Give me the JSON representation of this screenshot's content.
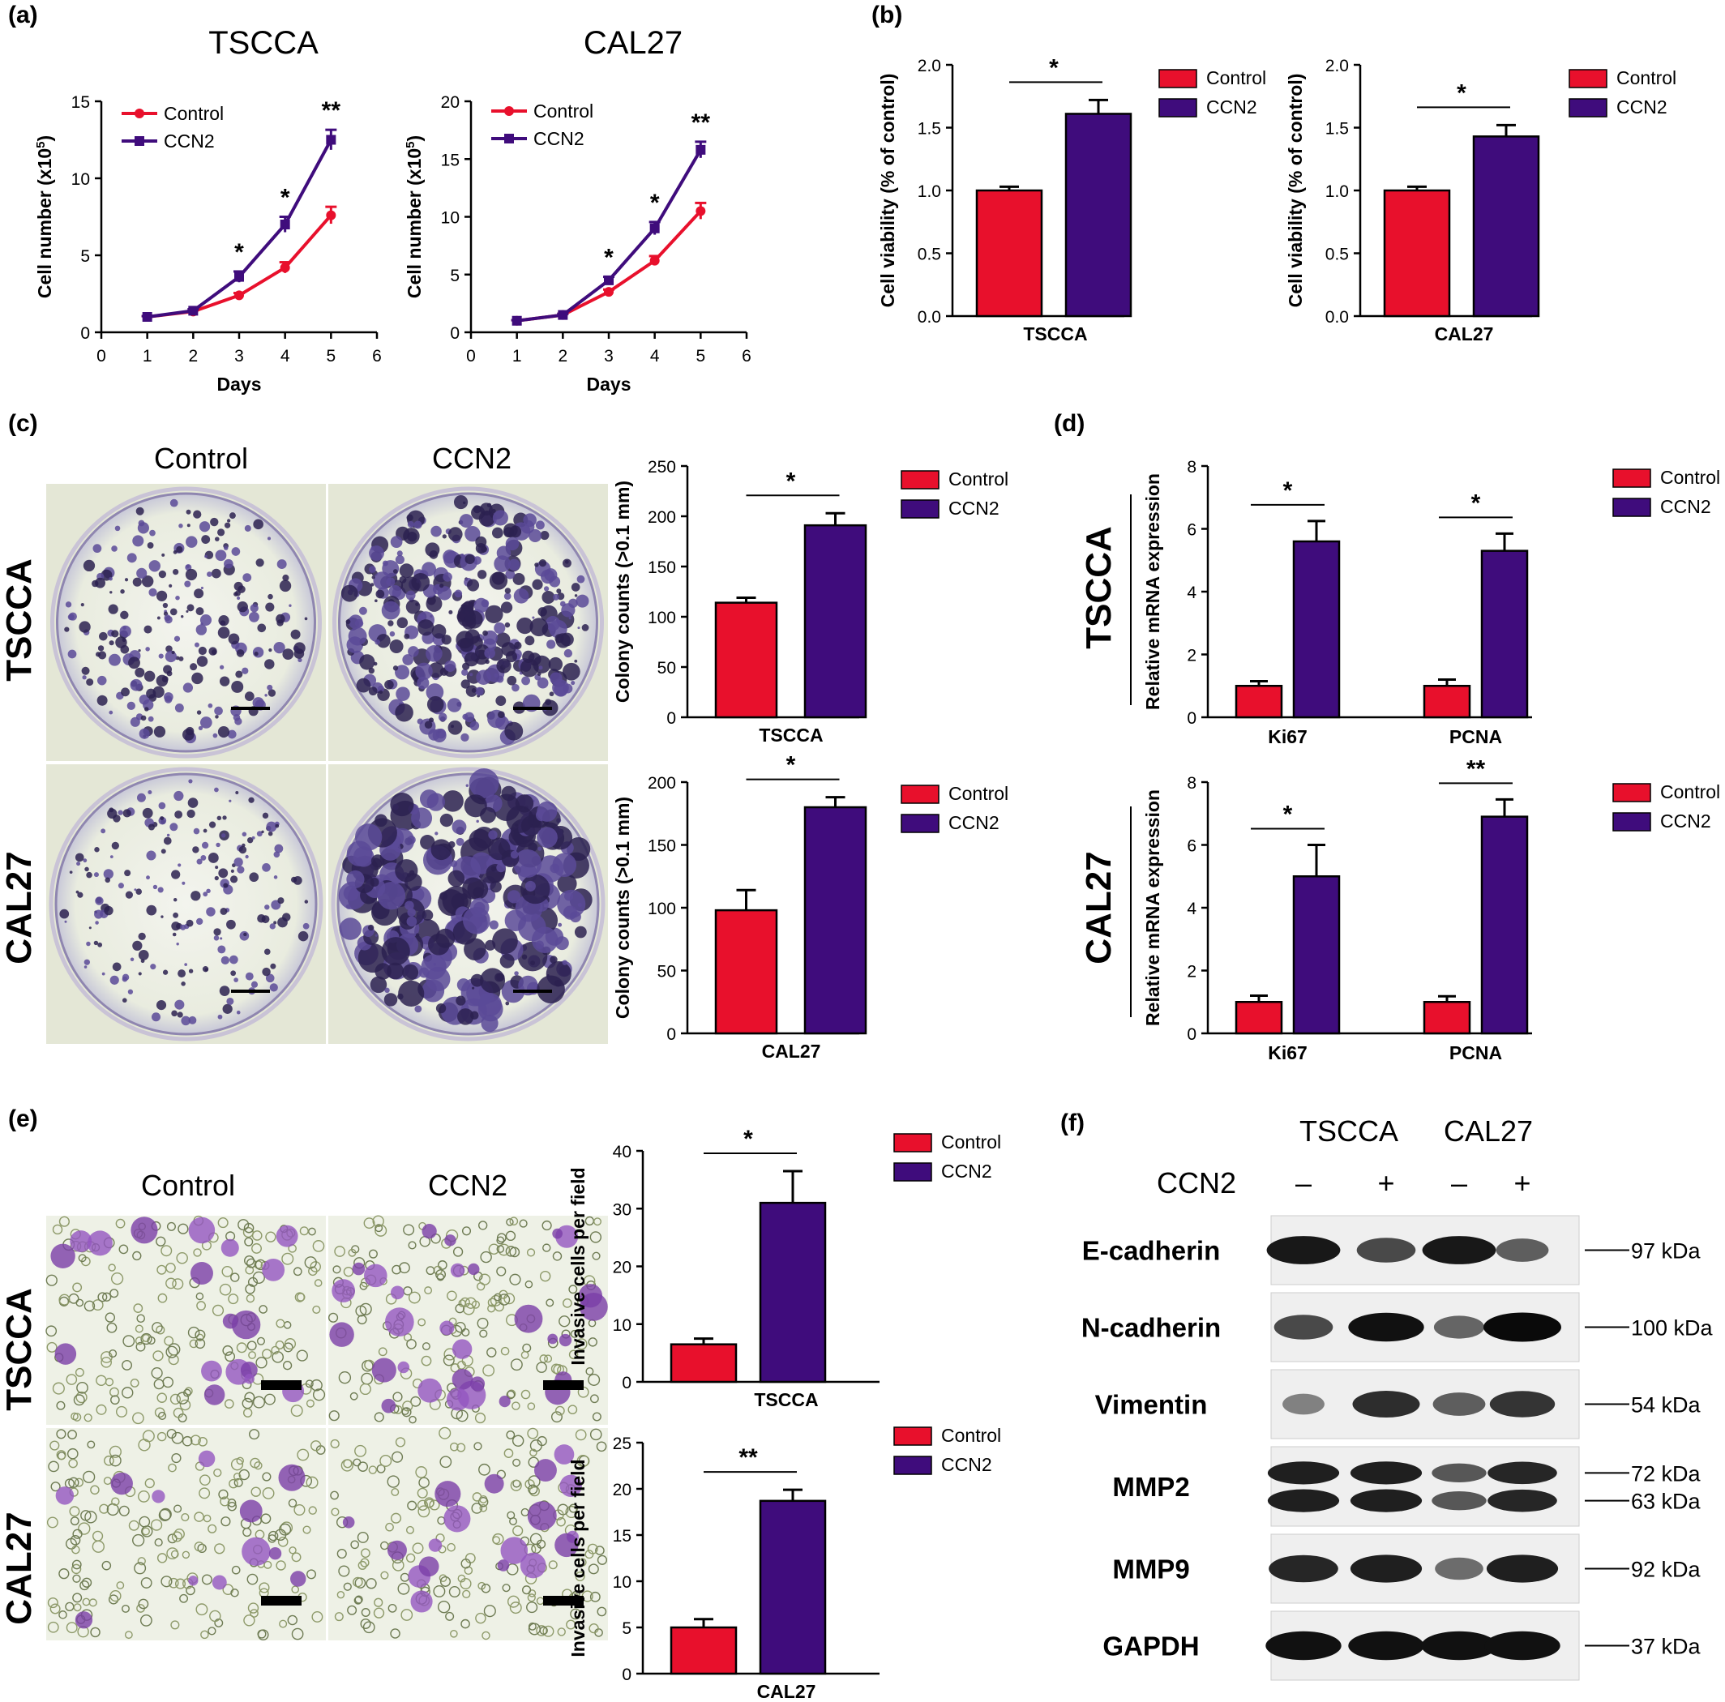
{
  "colors": {
    "control": "#e8102c",
    "ccn2": "#3f0c7c",
    "plate": "#f1f3e9",
    "dish": "#e7ecdd"
  },
  "panel_labels": [
    "(a)",
    "(b)",
    "(c)",
    "(d)",
    "(e)",
    "(f)"
  ],
  "legend": [
    "Control",
    "CCN2"
  ],
  "image_headers": {
    "c": [
      "Control",
      "CCN2"
    ],
    "e": [
      "Control",
      "CCN2"
    ]
  },
  "image_rows": {
    "c": [
      "TSCCA",
      "CAL27"
    ],
    "e": [
      "TSCCA",
      "CAL27"
    ],
    "d": [
      "TSCCA",
      "CAL27"
    ]
  },
  "chart_data": [
    {
      "id": "a1",
      "type": "line",
      "title": "TSCCA",
      "xlabel": "Days",
      "ylabel": "Cell number (x10",
      "ylabel_sup": "5",
      "ylabel_end": ")",
      "xlim": [
        0,
        6
      ],
      "ylim": [
        0,
        15
      ],
      "xticks": [
        0,
        1,
        2,
        3,
        4,
        5,
        6
      ],
      "yticks": [
        0,
        5,
        10,
        15
      ],
      "x": [
        1,
        2,
        3,
        4,
        5
      ],
      "series": [
        {
          "name": "Control",
          "values": [
            1.0,
            1.35,
            2.4,
            4.2,
            7.6
          ],
          "err": [
            0.05,
            0.08,
            0.15,
            0.35,
            0.55
          ]
        },
        {
          "name": "CCN2",
          "values": [
            1.0,
            1.4,
            3.6,
            7.0,
            12.5
          ],
          "err": [
            0.05,
            0.1,
            0.35,
            0.5,
            0.65
          ]
        }
      ],
      "annotations": [
        {
          "x": 3,
          "text": "*"
        },
        {
          "x": 4,
          "text": "*"
        },
        {
          "x": 5,
          "text": "**"
        }
      ],
      "legend_position": "top-left"
    },
    {
      "id": "a2",
      "type": "line",
      "title": "CAL27",
      "xlabel": "Days",
      "ylabel": "Cell number (x10",
      "ylabel_sup": "5",
      "ylabel_end": ")",
      "xlim": [
        0,
        6
      ],
      "ylim": [
        0,
        20
      ],
      "xticks": [
        0,
        1,
        2,
        3,
        4,
        5,
        6
      ],
      "yticks": [
        0,
        5,
        10,
        15,
        20
      ],
      "x": [
        1,
        2,
        3,
        4,
        5
      ],
      "series": [
        {
          "name": "Control",
          "values": [
            1.0,
            1.5,
            3.5,
            6.2,
            10.5
          ],
          "err": [
            0.05,
            0.1,
            0.2,
            0.4,
            0.7
          ]
        },
        {
          "name": "CCN2",
          "values": [
            1.0,
            1.5,
            4.5,
            9.0,
            15.8
          ],
          "err": [
            0.05,
            0.1,
            0.3,
            0.55,
            0.7
          ]
        }
      ],
      "annotations": [
        {
          "x": 3,
          "text": "*"
        },
        {
          "x": 4,
          "text": "*"
        },
        {
          "x": 5,
          "text": "**"
        }
      ],
      "legend_position": "top-left"
    },
    {
      "id": "b1",
      "type": "bar",
      "categories": [
        "Control",
        "CCN2"
      ],
      "group_label": "TSCCA",
      "values": [
        1.0,
        1.61
      ],
      "err": [
        0.03,
        0.11
      ],
      "ylabel": "Cell viability (% of control)",
      "ylim": [
        0,
        2.0
      ],
      "yticks": [
        "0.0",
        "0.5",
        "1.0",
        "1.5",
        "2.0"
      ],
      "ytick_values": [
        0,
        0.5,
        1.0,
        1.5,
        2.0
      ],
      "comparisons": [
        {
          "pair": [
            0,
            1
          ],
          "text": "*"
        }
      ],
      "legend_position": "right"
    },
    {
      "id": "b2",
      "type": "bar",
      "categories": [
        "Control",
        "CCN2"
      ],
      "group_label": "CAL27",
      "values": [
        1.0,
        1.43
      ],
      "err": [
        0.03,
        0.09
      ],
      "ylabel": "Cell viability (% of control)",
      "ylim": [
        0,
        2.0
      ],
      "yticks": [
        "0.0",
        "0.5",
        "1.0",
        "1.5",
        "2.0"
      ],
      "ytick_values": [
        0,
        0.5,
        1.0,
        1.5,
        2.0
      ],
      "comparisons": [
        {
          "pair": [
            0,
            1
          ],
          "text": "*"
        }
      ],
      "legend_position": "right"
    },
    {
      "id": "c1",
      "type": "bar",
      "categories": [
        "Control",
        "CCN2"
      ],
      "group_label": "TSCCA",
      "values": [
        114,
        191
      ],
      "err": [
        5,
        12
      ],
      "ylabel": "Colony counts (>0.1 mm)",
      "ylim": [
        0,
        250
      ],
      "yticks": [
        "0",
        "50",
        "100",
        "150",
        "200",
        "250"
      ],
      "ytick_values": [
        0,
        50,
        100,
        150,
        200,
        250
      ],
      "comparisons": [
        {
          "pair": [
            0,
            1
          ],
          "text": "*"
        }
      ],
      "legend_position": "right"
    },
    {
      "id": "c2",
      "type": "bar",
      "categories": [
        "Control",
        "CCN2"
      ],
      "group_label": "CAL27",
      "values": [
        98,
        180
      ],
      "err": [
        16,
        8
      ],
      "ylabel": "Colony counts (>0.1 mm)",
      "ylim": [
        0,
        200
      ],
      "yticks": [
        "0",
        "50",
        "100",
        "150",
        "200"
      ],
      "ytick_values": [
        0,
        50,
        100,
        150,
        200
      ],
      "comparisons": [
        {
          "pair": [
            0,
            1
          ],
          "text": "*"
        }
      ],
      "legend_position": "right"
    },
    {
      "id": "d1",
      "type": "bar",
      "categories": [
        "Ki67",
        "PCNA"
      ],
      "series": [
        {
          "name": "Control",
          "values": [
            1.0,
            1.0
          ],
          "err": [
            0.15,
            0.2
          ]
        },
        {
          "name": "CCN2",
          "values": [
            5.6,
            5.3
          ],
          "err": [
            0.65,
            0.55
          ]
        }
      ],
      "ylabel": "Relative mRNA expression",
      "ylim": [
        0,
        8
      ],
      "yticks": [
        "0",
        "2",
        "4",
        "6",
        "8"
      ],
      "ytick_values": [
        0,
        2,
        4,
        6,
        8
      ],
      "comparisons": [
        {
          "category": 0,
          "text": "*"
        },
        {
          "category": 1,
          "text": "*"
        }
      ],
      "legend_position": "right"
    },
    {
      "id": "d2",
      "type": "bar",
      "categories": [
        "Ki67",
        "PCNA"
      ],
      "series": [
        {
          "name": "Control",
          "values": [
            1.0,
            1.0
          ],
          "err": [
            0.2,
            0.18
          ]
        },
        {
          "name": "CCN2",
          "values": [
            5.0,
            6.9
          ],
          "err": [
            1.0,
            0.55
          ]
        }
      ],
      "ylabel": "Relative mRNA expression",
      "ylim": [
        0,
        8
      ],
      "yticks": [
        "0",
        "2",
        "4",
        "6",
        "8"
      ],
      "ytick_values": [
        0,
        2,
        4,
        6,
        8
      ],
      "comparisons": [
        {
          "category": 0,
          "text": "*"
        },
        {
          "category": 1,
          "text": "**"
        }
      ],
      "legend_position": "right"
    },
    {
      "id": "e1",
      "type": "bar",
      "categories": [
        "Control",
        "CCN2"
      ],
      "group_label": "TSCCA",
      "values": [
        6.5,
        31
      ],
      "err": [
        1.0,
        5.5
      ],
      "ylabel": "Invasive cells per field",
      "ylim": [
        0,
        40
      ],
      "yticks": [
        "0",
        "10",
        "20",
        "30",
        "40"
      ],
      "ytick_values": [
        0,
        10,
        20,
        30,
        40
      ],
      "comparisons": [
        {
          "pair": [
            0,
            1
          ],
          "text": "*"
        }
      ],
      "legend_position": "right"
    },
    {
      "id": "e2",
      "type": "bar",
      "categories": [
        "Control",
        "CCN2"
      ],
      "group_label": "CAL27",
      "values": [
        5.0,
        18.7
      ],
      "err": [
        0.9,
        1.2
      ],
      "ylabel": "Invasive cells per field",
      "ylim": [
        0,
        25
      ],
      "yticks": [
        "0",
        "5",
        "10",
        "15",
        "20",
        "25"
      ],
      "ytick_values": [
        0,
        5,
        10,
        15,
        20,
        25
      ],
      "comparisons": [
        {
          "pair": [
            0,
            1
          ],
          "text": "**"
        }
      ],
      "legend_position": "right"
    }
  ],
  "western": {
    "cell_lines": [
      "TSCCA",
      "CAL27"
    ],
    "treatment_label": "CCN2",
    "lane_signs": [
      "–",
      "+",
      "–",
      "+"
    ],
    "bands": [
      {
        "name": "E-cadherin",
        "markers": [
          "97 kDa"
        ],
        "intensity": [
          0.9,
          0.55,
          0.9,
          0.4
        ],
        "rows": 1
      },
      {
        "name": "N-cadherin",
        "markers": [
          "100 kDa"
        ],
        "intensity": [
          0.55,
          0.95,
          0.35,
          1.0
        ],
        "rows": 1
      },
      {
        "name": "Vimentin",
        "markers": [
          "54 kDa"
        ],
        "intensity": [
          0.15,
          0.75,
          0.4,
          0.7
        ],
        "rows": 1
      },
      {
        "name": "MMP2",
        "markers": [
          "72 kDa",
          "63 kDa"
        ],
        "intensity": [
          0.85,
          0.85,
          0.45,
          0.8
        ],
        "rows": 2
      },
      {
        "name": "MMP9",
        "markers": [
          "92 kDa"
        ],
        "intensity": [
          0.8,
          0.85,
          0.3,
          0.85
        ],
        "rows": 1
      },
      {
        "name": "GAPDH",
        "markers": [
          "37 kDa"
        ],
        "intensity": [
          0.95,
          0.95,
          0.95,
          0.95
        ],
        "rows": 1
      }
    ]
  }
}
